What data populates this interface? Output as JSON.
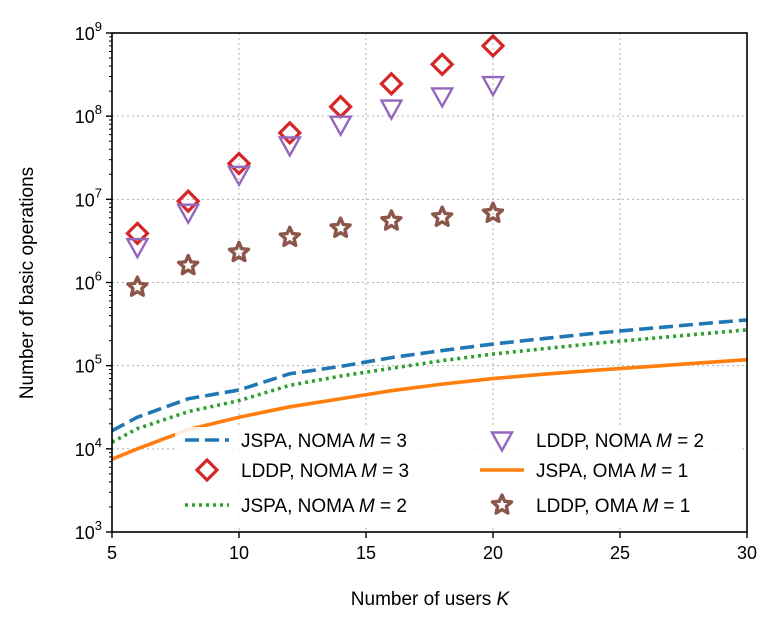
{
  "chart_data": {
    "type": "line",
    "title": "",
    "xlabel": "Number of users K",
    "xlabel_parts": [
      "Number of users ",
      "K"
    ],
    "ylabel": "Number of basic operations",
    "xlim": [
      5,
      30
    ],
    "ylim_log10": [
      3,
      9
    ],
    "yscale": "log",
    "grid": true,
    "legend_position": "lower-right",
    "x_ticks": [
      5,
      10,
      15,
      20,
      25,
      30
    ],
    "x_tick_labels": [
      "5",
      "10",
      "15",
      "20",
      "25",
      "30"
    ],
    "y_tick_exponents": [
      3,
      4,
      5,
      6,
      7,
      8,
      9
    ],
    "y_tick_base": "10",
    "y_tick_exps": [
      "3",
      "4",
      "5",
      "6",
      "7",
      "8",
      "9"
    ],
    "series": [
      {
        "name": "JSPA, NOMA M = 3",
        "legend_prefix": "JSPA, NOMA ",
        "legend_var": "M",
        "legend_suffix": " = 3",
        "style": "dashed-line",
        "color": "#1f77b4",
        "x": [
          5,
          6,
          8,
          10,
          12,
          14,
          16,
          18,
          20,
          22,
          24,
          26,
          28,
          30
        ],
        "values": [
          16500,
          24000,
          40000,
          51000,
          80000,
          98000,
          125000,
          152000,
          182000,
          212000,
          245000,
          278000,
          315000,
          355000
        ]
      },
      {
        "name": "LDDP, NOMA M = 3",
        "legend_prefix": "LDDP, NOMA ",
        "legend_var": "M",
        "legend_suffix": " = 3",
        "style": "diamond-marker",
        "color": "#d62728",
        "x": [
          6,
          8,
          10,
          12,
          14,
          16,
          18,
          20
        ],
        "values": [
          3900000,
          9500000,
          27000000,
          63000000,
          130000000,
          245000000,
          420000000,
          700000000
        ]
      },
      {
        "name": "JSPA, NOMA M = 2",
        "legend_prefix": "JSPA, NOMA ",
        "legend_var": "M",
        "legend_suffix": " = 2",
        "style": "dotted-line",
        "color": "#2ca02c",
        "x": [
          5,
          6,
          8,
          10,
          12,
          14,
          16,
          18,
          20,
          22,
          24,
          26,
          28,
          30
        ],
        "values": [
          12000,
          17500,
          28000,
          38000,
          58000,
          75000,
          93000,
          115000,
          138000,
          160000,
          185000,
          210000,
          238000,
          270000
        ]
      },
      {
        "name": "LDDP, NOMA M = 2",
        "legend_prefix": "LDDP, NOMA ",
        "legend_var": "M",
        "legend_suffix": " = 2",
        "style": "triangle-down-marker",
        "color": "#9467bd",
        "x": [
          6,
          8,
          10,
          12,
          14,
          16,
          18,
          20
        ],
        "values": [
          2700000,
          7000000,
          20000000,
          45000000,
          80000000,
          125000000,
          175000000,
          240000000
        ]
      },
      {
        "name": "JSPA, OMA M = 1",
        "legend_prefix": "JSPA, OMA ",
        "legend_var": "M",
        "legend_suffix": " = 1",
        "style": "solid-line",
        "color": "#ff7f0e",
        "x": [
          5,
          6,
          8,
          10,
          12,
          14,
          16,
          18,
          20,
          22,
          24,
          26,
          28,
          30
        ],
        "values": [
          7500,
          10000,
          17000,
          24000,
          32000,
          40000,
          50000,
          60000,
          70000,
          79000,
          88000,
          97000,
          107000,
          118000
        ]
      },
      {
        "name": "LDDP, OMA M = 1",
        "legend_prefix": "LDDP, OMA ",
        "legend_var": "M",
        "legend_suffix": " = 1",
        "style": "star-marker",
        "color": "#8c564b",
        "x": [
          6,
          8,
          10,
          12,
          14,
          16,
          18,
          20
        ],
        "values": [
          880000,
          1600000,
          2300000,
          3500000,
          4500000,
          5500000,
          6100000,
          6800000
        ]
      }
    ]
  }
}
